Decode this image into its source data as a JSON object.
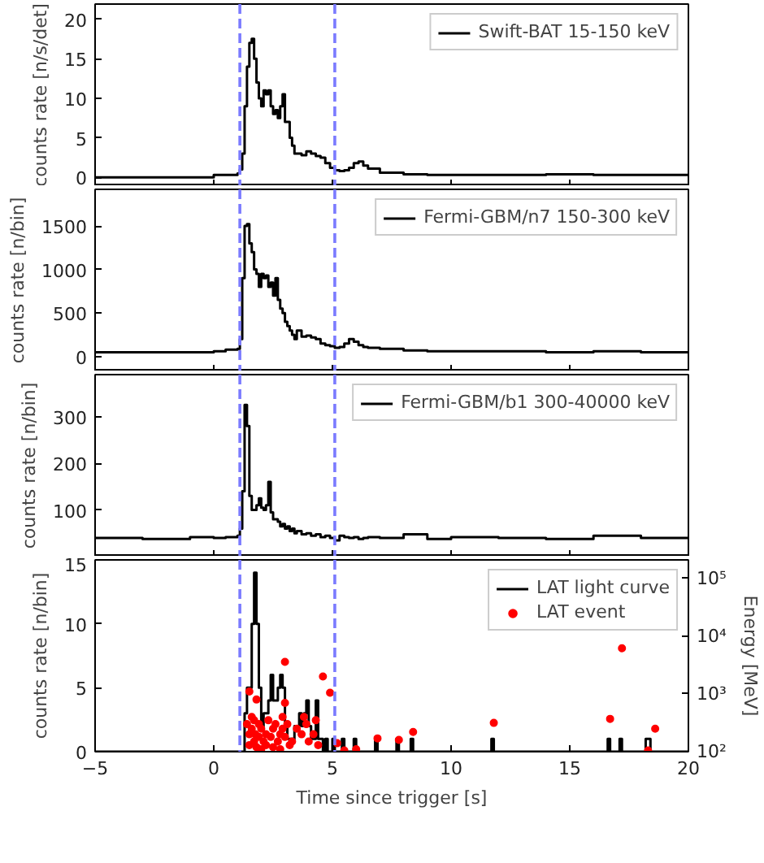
{
  "chart_data": [
    {
      "type": "step",
      "ylabel": "counts rate [n/s/det]",
      "xlim": [
        -5,
        20
      ],
      "ylim": [
        -1.1,
        21.9
      ],
      "xticks": [
        -5,
        0,
        5,
        10,
        15,
        20
      ],
      "yticks": [
        0,
        5,
        10,
        15,
        20
      ],
      "tick_labels": "y",
      "legend": "top right",
      "grid": false,
      "ref_lines": [
        {
          "axis": "x",
          "value": 1.1,
          "color": "#7b7bff",
          "line_style": "dashed"
        },
        {
          "axis": "x",
          "value": 5.1,
          "color": "#7b7bff",
          "line_style": "dashed"
        }
      ],
      "series": [
        {
          "name": "Swift-BAT 15-150 keV",
          "color": "#000000",
          "x": [
            -5,
            -3,
            -1,
            0,
            0.5,
            1.0,
            1.1,
            1.2,
            1.3,
            1.4,
            1.5,
            1.6,
            1.7,
            1.8,
            1.9,
            2.0,
            2.1,
            2.2,
            2.3,
            2.4,
            2.5,
            2.6,
            2.7,
            2.8,
            2.9,
            3.0,
            3.1,
            3.2,
            3.3,
            3.4,
            3.5,
            3.7,
            3.9,
            4.1,
            4.3,
            4.5,
            4.7,
            4.9,
            5.1,
            5.3,
            5.5,
            5.7,
            5.9,
            6.1,
            6.3,
            6.5,
            7,
            8,
            9,
            10,
            12,
            14,
            16,
            18,
            20
          ],
          "values": [
            0,
            0,
            0,
            0.3,
            0.3,
            0.5,
            1,
            3,
            9,
            14,
            17,
            17.5,
            15,
            12,
            10,
            9,
            11,
            10.5,
            11,
            9,
            8,
            8.5,
            7.5,
            9,
            10.5,
            7,
            7,
            5,
            4,
            3,
            3,
            2.8,
            3.3,
            3,
            2.7,
            2.5,
            1.8,
            1.2,
            0.9,
            0.8,
            0.9,
            1.2,
            1.8,
            2,
            1.5,
            1.1,
            0.6,
            0.4,
            0.3,
            0.3,
            0.3,
            0.4,
            0.3,
            0.3,
            0.3
          ]
        }
      ]
    },
    {
      "type": "step",
      "ylabel": "counts rate [n/bin]",
      "xlim": [
        -5,
        20
      ],
      "ylim": [
        -170,
        1920
      ],
      "xticks": [
        -5,
        0,
        5,
        10,
        15,
        20
      ],
      "yticks": [
        0,
        500,
        1000,
        1500
      ],
      "tick_labels": "y",
      "legend": "top right",
      "grid": false,
      "ref_lines": [
        {
          "axis": "x",
          "value": 1.1,
          "color": "#7b7bff",
          "line_style": "dashed"
        },
        {
          "axis": "x",
          "value": 5.1,
          "color": "#7b7bff",
          "line_style": "dashed"
        }
      ],
      "series": [
        {
          "name": "Fermi-GBM/n7 150-300 keV",
          "color": "#000000",
          "x": [
            -5,
            -3,
            -1,
            0,
            0.5,
            1.0,
            1.1,
            1.2,
            1.3,
            1.4,
            1.5,
            1.6,
            1.7,
            1.8,
            1.9,
            2.0,
            2.1,
            2.2,
            2.3,
            2.4,
            2.5,
            2.6,
            2.7,
            2.8,
            2.9,
            3.0,
            3.1,
            3.2,
            3.3,
            3.4,
            3.5,
            3.7,
            3.9,
            4.1,
            4.3,
            4.5,
            4.7,
            4.9,
            5.1,
            5.3,
            5.5,
            5.7,
            5.9,
            6.1,
            6.3,
            6.5,
            7,
            8,
            9,
            10,
            12,
            14,
            16,
            18,
            20
          ],
          "values": [
            50,
            50,
            50,
            60,
            80,
            90,
            200,
            900,
            1500,
            1520,
            1300,
            1200,
            1000,
            950,
            800,
            950,
            900,
            930,
            800,
            850,
            700,
            900,
            650,
            550,
            500,
            400,
            350,
            300,
            250,
            200,
            300,
            230,
            240,
            220,
            200,
            150,
            130,
            120,
            100,
            110,
            150,
            200,
            170,
            130,
            110,
            100,
            90,
            70,
            60,
            60,
            60,
            50,
            60,
            50,
            50
          ]
        }
      ]
    },
    {
      "type": "step",
      "ylabel": "counts rate [n/bin]",
      "xlim": [
        -5,
        20
      ],
      "ylim": [
        0,
        390
      ],
      "xticks": [
        -5,
        0,
        5,
        10,
        15,
        20
      ],
      "yticks": [
        100,
        200,
        300
      ],
      "tick_labels": "y",
      "legend": "top right",
      "grid": false,
      "ref_lines": [
        {
          "axis": "x",
          "value": 1.1,
          "color": "#7b7bff",
          "line_style": "dashed"
        },
        {
          "axis": "x",
          "value": 5.1,
          "color": "#7b7bff",
          "line_style": "dashed"
        }
      ],
      "series": [
        {
          "name": "Fermi-GBM/b1 300-40000 keV",
          "color": "#000000",
          "x": [
            -5,
            -3,
            -1,
            0,
            0.5,
            1.0,
            1.1,
            1.2,
            1.3,
            1.4,
            1.5,
            1.6,
            1.7,
            1.8,
            1.9,
            2.0,
            2.1,
            2.2,
            2.3,
            2.4,
            2.5,
            2.6,
            2.7,
            2.8,
            2.9,
            3.0,
            3.1,
            3.2,
            3.3,
            3.4,
            3.5,
            3.7,
            3.9,
            4.1,
            4.3,
            4.5,
            4.7,
            4.9,
            5.1,
            5.3,
            5.5,
            5.7,
            5.9,
            6.1,
            6.3,
            6.5,
            7,
            8,
            9,
            10,
            12,
            14,
            16,
            18,
            20
          ],
          "values": [
            40,
            38,
            42,
            40,
            42,
            45,
            60,
            140,
            325,
            280,
            130,
            100,
            100,
            110,
            125,
            105,
            100,
            110,
            160,
            95,
            80,
            80,
            75,
            65,
            70,
            60,
            65,
            55,
            60,
            50,
            55,
            48,
            50,
            45,
            48,
            42,
            45,
            40,
            35,
            45,
            42,
            40,
            42,
            38,
            40,
            42,
            40,
            48,
            38,
            42,
            40,
            38,
            45,
            40,
            38
          ]
        }
      ]
    },
    {
      "type": "step",
      "ylabel": "counts rate [n/bin]",
      "xlabel": "Time since trigger [s]",
      "y2label": "Energy [MeV]",
      "xlim": [
        -5,
        20
      ],
      "ylim": [
        0,
        15
      ],
      "xticks": [
        -5,
        0,
        5,
        10,
        15,
        20
      ],
      "yticks": [
        0,
        5,
        10,
        15
      ],
      "log": "y2",
      "y2lim": [
        100,
        210000
      ],
      "y2ticks": [
        {
          "value": 100,
          "label": "10²"
        },
        {
          "value": 1000,
          "label": "10³"
        },
        {
          "value": 10000,
          "label": "10⁴"
        },
        {
          "value": 100000,
          "label": "10⁵"
        }
      ],
      "legend": "top right",
      "grid": false,
      "ref_lines": [
        {
          "axis": "x",
          "value": 1.1,
          "color": "#7b7bff",
          "line_style": "dashed"
        },
        {
          "axis": "x",
          "value": 5.1,
          "color": "#7b7bff",
          "line_style": "dashed"
        }
      ],
      "series": [
        {
          "name": "LAT light curve",
          "color": "#000000",
          "x": [
            -5,
            1.3,
            1.4,
            1.5,
            1.6,
            1.7,
            1.8,
            1.9,
            2.0,
            2.1,
            2.2,
            2.3,
            2.4,
            2.5,
            2.6,
            2.7,
            2.8,
            2.9,
            3.0,
            3.1,
            3.2,
            3.3,
            3.4,
            3.5,
            3.6,
            3.7,
            3.8,
            3.9,
            4.0,
            4.1,
            4.2,
            4.3,
            4.4,
            4.5,
            4.6,
            4.7,
            4.8,
            4.9,
            5.0,
            5.1,
            5.4,
            5.5,
            5.9,
            6.0,
            6.8,
            6.9,
            7.7,
            7.8,
            8.3,
            8.4,
            11.7,
            11.8,
            16.6,
            16.7,
            17.1,
            17.2,
            18.2,
            18.4,
            20
          ],
          "values": [
            0,
            3,
            5,
            5,
            10,
            14,
            10,
            5,
            2,
            3,
            3,
            4,
            6,
            4,
            4,
            5,
            6,
            5,
            2,
            1,
            1,
            1,
            2,
            2,
            3,
            2,
            3,
            4,
            2,
            1,
            1,
            4,
            1,
            1,
            0,
            1,
            0,
            0,
            1,
            0,
            1,
            0,
            1,
            0,
            1,
            0,
            1,
            0,
            1,
            0,
            1,
            0,
            1,
            0,
            1,
            0,
            1,
            0,
            0
          ]
        },
        {
          "name": "LAT event",
          "type": "scatter",
          "axis": "y2",
          "color": "#ff0000",
          "marker": "circle",
          "x": [
            1.5,
            1.8,
            3.0,
            4.6,
            4.9,
            17.2,
            11.8,
            16.7,
            18.6,
            18.3,
            8.4,
            7.8,
            6.9,
            6.0,
            5.5,
            5.2,
            1.4,
            1.5,
            1.5,
            1.6,
            1.6,
            1.7,
            1.7,
            1.75,
            1.8,
            1.9,
            1.9,
            2.0,
            2.0,
            2.1,
            2.2,
            2.2,
            2.3,
            2.4,
            2.5,
            2.5,
            2.6,
            2.7,
            2.8,
            2.8,
            2.9,
            2.9,
            3.0,
            3.0,
            3.1,
            3.2,
            3.3,
            3.5,
            3.7,
            3.8,
            3.9,
            4.0,
            4.2,
            4.3,
            4.4
          ],
          "values": [
            1100,
            800,
            3600,
            2000,
            1050,
            6200,
            315,
            370,
            250,
            105,
            220,
            160,
            170,
            110,
            105,
            140,
            300,
            200,
            130,
            400,
            250,
            150,
            350,
            200,
            120,
            180,
            300,
            250,
            110,
            150,
            200,
            130,
            350,
            180,
            120,
            250,
            300,
            150,
            200,
            110,
            400,
            250,
            700,
            180,
            300,
            130,
            150,
            250,
            200,
            400,
            300,
            150,
            200,
            350,
            130
          ]
        }
      ]
    }
  ]
}
